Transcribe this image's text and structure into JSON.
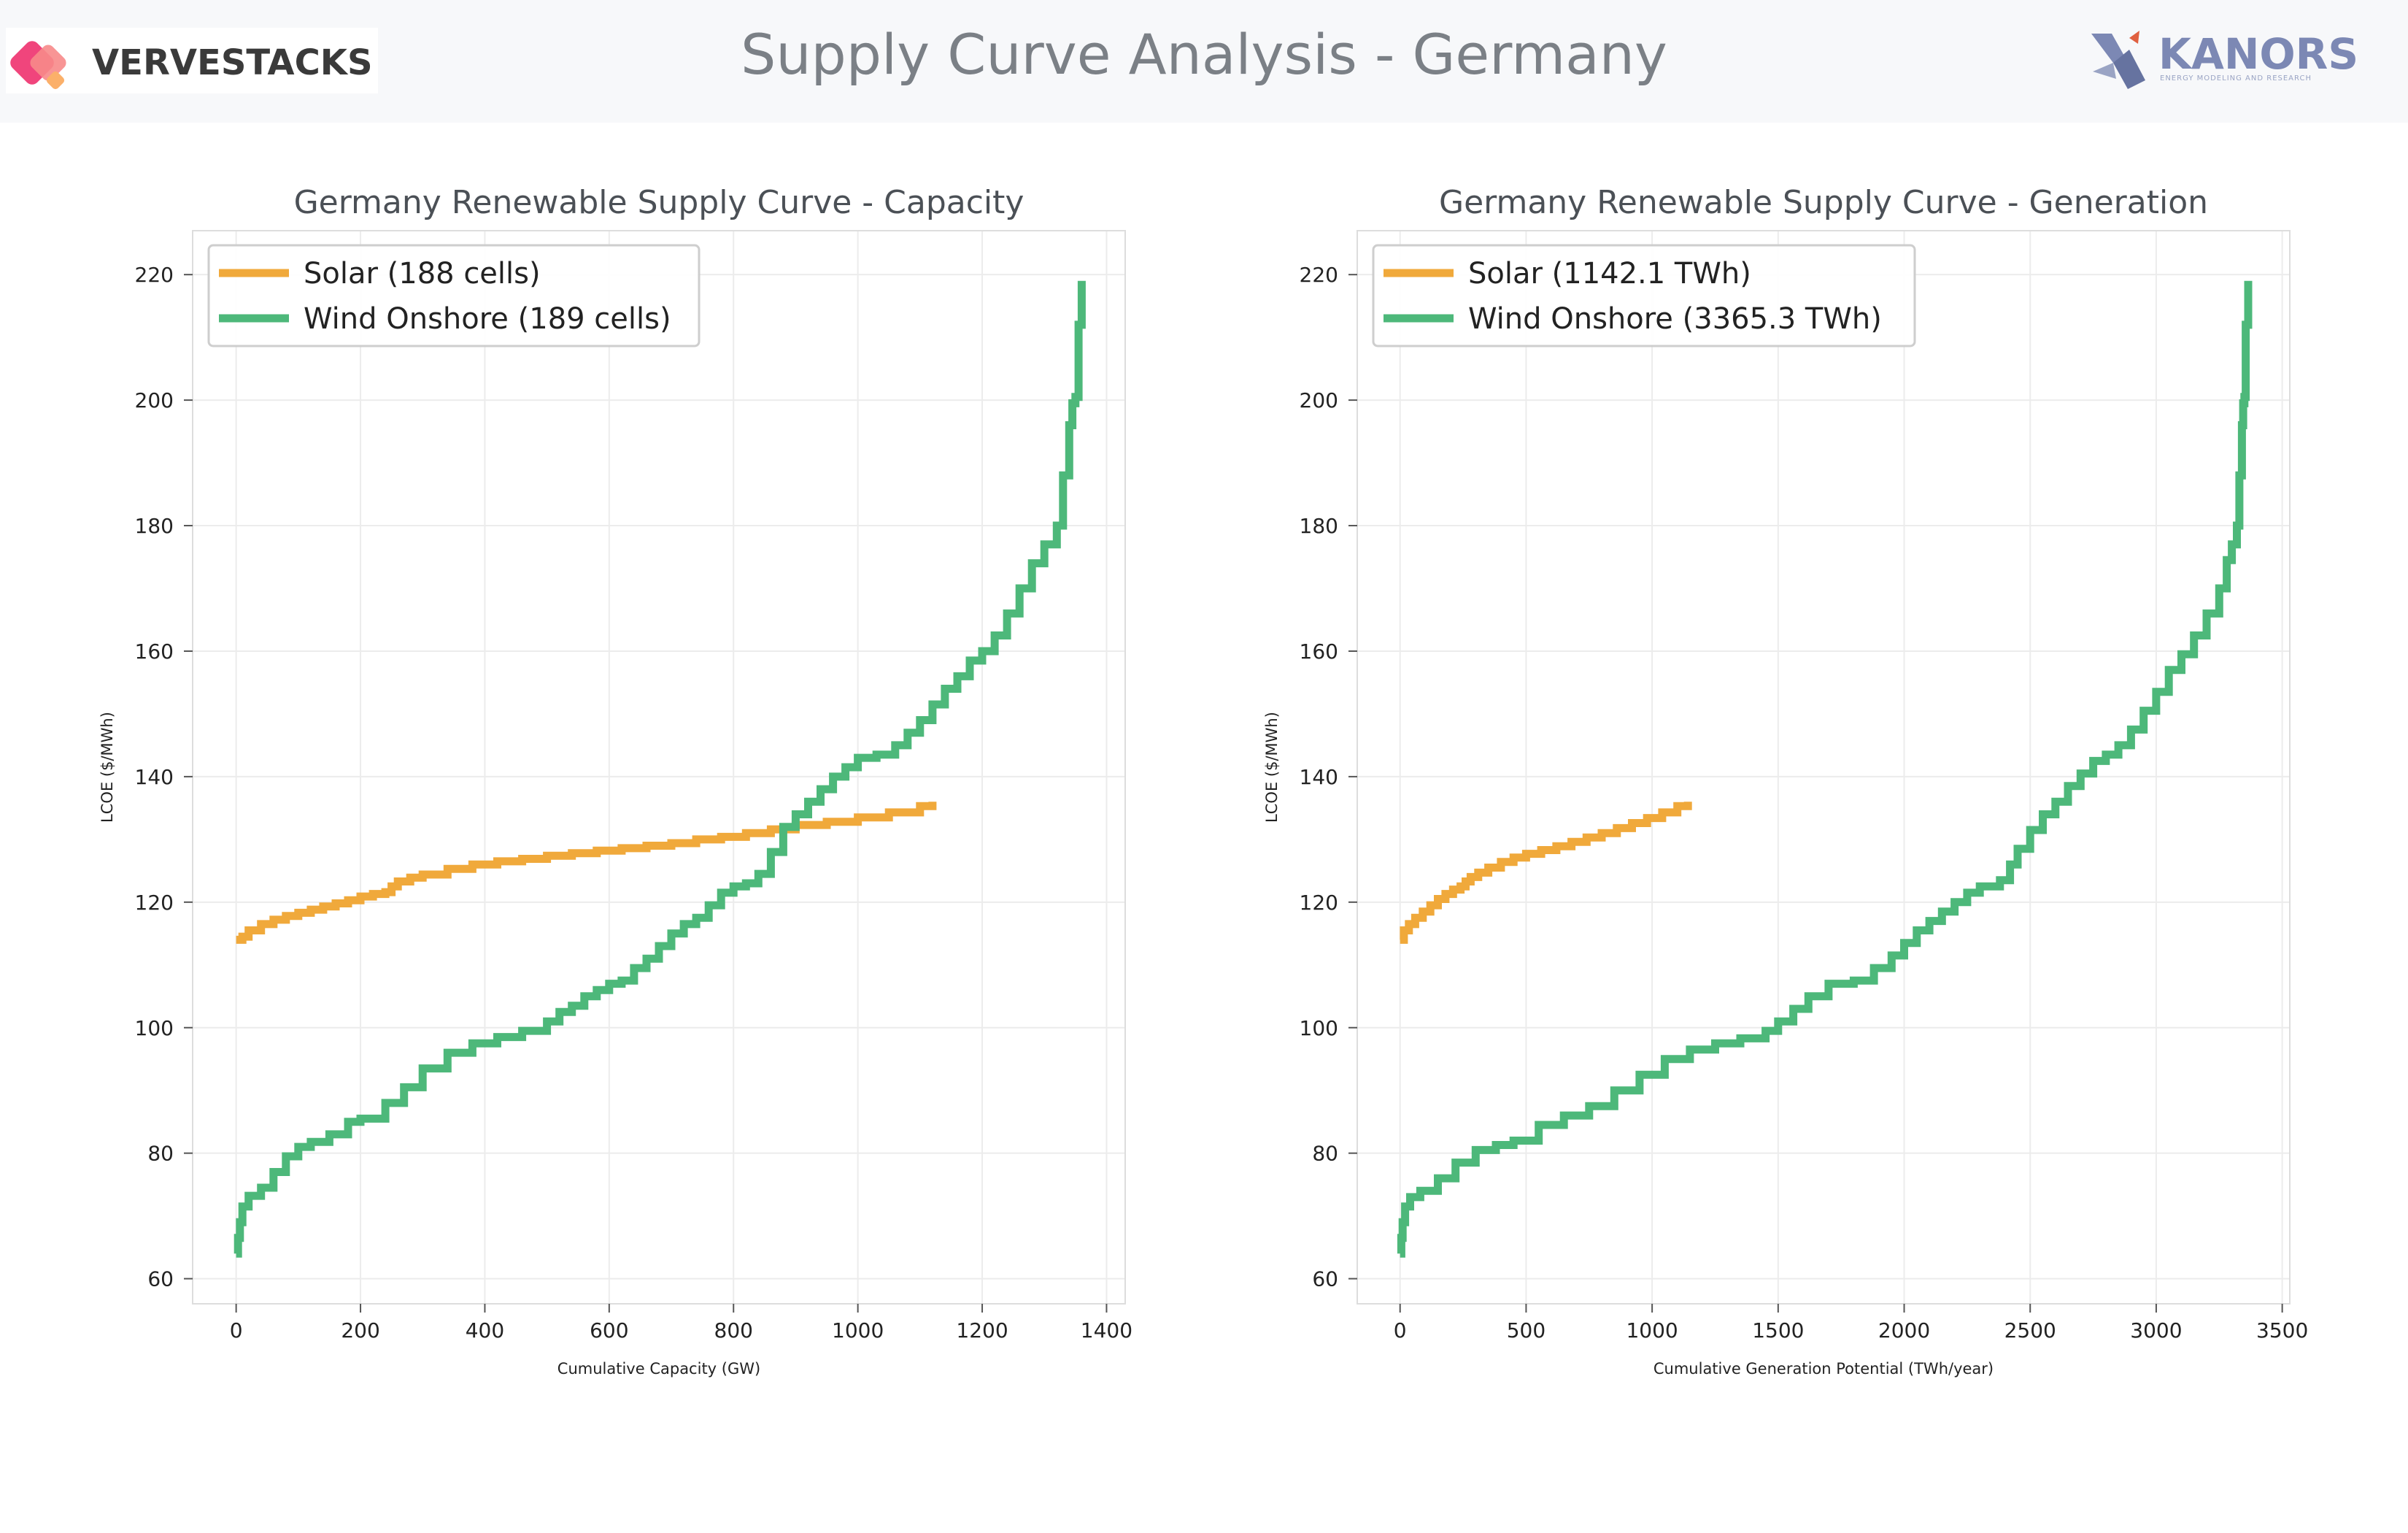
{
  "header": {
    "title": "Supply Curve Analysis - Germany",
    "left_logo": "VERVESTACKS",
    "right_logo": "KANORS",
    "right_logo_tagline": "ENERGY MODELING AND RESEARCH"
  },
  "colors": {
    "solar": "#f0a93b",
    "wind": "#4db87a"
  },
  "chart_data": [
    {
      "type": "line",
      "title": "Germany Renewable Supply Curve - Capacity",
      "xlabel": "Cumulative Capacity (GW)",
      "ylabel": "LCOE ($/MWh)",
      "xlim": [
        -70,
        1430
      ],
      "ylim": [
        56,
        227
      ],
      "xticks": [
        0,
        200,
        400,
        600,
        800,
        1000,
        1200,
        1400
      ],
      "yticks": [
        60,
        80,
        100,
        120,
        140,
        160,
        180,
        200,
        220
      ],
      "grid": true,
      "legend_position": "top-left",
      "series": [
        {
          "name": "Solar (188 cells)",
          "color": "#f0a93b",
          "x": [
            0,
            10,
            20,
            40,
            60,
            80,
            100,
            120,
            140,
            160,
            180,
            200,
            220,
            240,
            250,
            260,
            280,
            300,
            340,
            380,
            420,
            460,
            500,
            540,
            580,
            620,
            660,
            700,
            740,
            780,
            820,
            860,
            900,
            950,
            1000,
            1050,
            1100,
            1120
          ],
          "y": [
            114,
            114.5,
            115.5,
            116.5,
            117.2,
            117.8,
            118.3,
            118.8,
            119.3,
            119.8,
            120.3,
            120.9,
            121.3,
            121.6,
            122.5,
            123.3,
            123.9,
            124.4,
            125.3,
            126.0,
            126.5,
            126.9,
            127.4,
            127.8,
            128.2,
            128.6,
            129.0,
            129.4,
            130.0,
            130.4,
            131.0,
            131.6,
            132.3,
            132.8,
            133.5,
            134.3,
            135.3,
            136.0
          ]
        },
        {
          "name": "Wind Onshore (189 cells)",
          "color": "#4db87a",
          "x": [
            0,
            3,
            6,
            10,
            20,
            40,
            60,
            80,
            100,
            120,
            150,
            180,
            200,
            240,
            270,
            300,
            340,
            380,
            420,
            460,
            500,
            520,
            540,
            560,
            580,
            600,
            620,
            640,
            660,
            680,
            700,
            720,
            740,
            760,
            780,
            800,
            820,
            840,
            860,
            880,
            900,
            920,
            940,
            960,
            980,
            1000,
            1030,
            1060,
            1080,
            1100,
            1120,
            1140,
            1160,
            1180,
            1200,
            1220,
            1240,
            1260,
            1280,
            1300,
            1320,
            1330,
            1340,
            1345,
            1350,
            1355,
            1360
          ],
          "y": [
            64,
            66.5,
            69,
            71.5,
            73.2,
            74.5,
            77,
            79.5,
            81,
            81.8,
            83,
            85,
            85.5,
            88,
            90.5,
            93.5,
            96,
            97.5,
            98.5,
            99.5,
            101,
            102.5,
            103.5,
            105,
            106,
            107,
            107.5,
            109.5,
            111,
            113,
            115,
            116.5,
            117.5,
            119.5,
            121.5,
            122.5,
            123,
            124.5,
            128,
            132,
            134,
            136,
            138,
            140,
            141.5,
            143,
            143.5,
            145,
            147,
            149,
            151.5,
            154,
            156,
            158.5,
            160,
            162.5,
            166,
            170,
            174,
            177,
            180,
            188,
            196,
            199.5,
            200.5,
            212,
            219
          ]
        }
      ]
    },
    {
      "type": "line",
      "title": "Germany Renewable Supply Curve - Generation",
      "xlabel": "Cumulative Generation Potential (TWh/year)",
      "ylabel": "LCOE ($/MWh)",
      "xlim": [
        -170,
        3530
      ],
      "ylim": [
        56,
        227
      ],
      "xticks": [
        0,
        500,
        1000,
        1500,
        2000,
        2500,
        3000,
        3500
      ],
      "yticks": [
        60,
        80,
        100,
        120,
        140,
        160,
        180,
        200,
        220
      ],
      "grid": true,
      "legend_position": "top-left",
      "series": [
        {
          "name": "Solar (1142.1 TWh)",
          "color": "#f0a93b",
          "x": [
            0,
            15,
            35,
            60,
            90,
            120,
            150,
            180,
            210,
            240,
            260,
            280,
            310,
            350,
            400,
            450,
            500,
            560,
            620,
            680,
            740,
            800,
            860,
            920,
            980,
            1040,
            1100,
            1142
          ],
          "y": [
            114,
            115.5,
            116.5,
            117.5,
            118.5,
            119.5,
            120.5,
            121.3,
            122,
            122.5,
            123.3,
            124,
            124.7,
            125.5,
            126.4,
            127.1,
            127.7,
            128.3,
            128.9,
            129.6,
            130.3,
            131,
            131.8,
            132.6,
            133.4,
            134.3,
            135.3,
            136
          ]
        },
        {
          "name": "Wind Onshore (3365.3 TWh)",
          "color": "#4db87a",
          "x": [
            0,
            5,
            10,
            20,
            40,
            80,
            150,
            220,
            300,
            380,
            450,
            550,
            650,
            750,
            850,
            950,
            1050,
            1150,
            1250,
            1350,
            1450,
            1500,
            1560,
            1620,
            1700,
            1800,
            1880,
            1950,
            2000,
            2050,
            2100,
            2150,
            2200,
            2250,
            2300,
            2380,
            2420,
            2450,
            2500,
            2550,
            2600,
            2650,
            2700,
            2750,
            2800,
            2850,
            2900,
            2950,
            3000,
            3050,
            3100,
            3150,
            3200,
            3250,
            3280,
            3300,
            3320,
            3330,
            3340,
            3345,
            3350,
            3355,
            3365
          ],
          "y": [
            64,
            66.5,
            69,
            71.5,
            73,
            74,
            76,
            78.5,
            80.5,
            81.3,
            82,
            84.5,
            86,
            87.5,
            90,
            92.5,
            95,
            96.5,
            97.5,
            98.3,
            99.5,
            101,
            103,
            105,
            107,
            107.5,
            109.5,
            111.5,
            113.5,
            115.5,
            117,
            118.5,
            120,
            121.5,
            122.5,
            123.5,
            126,
            128.5,
            131.5,
            134,
            136,
            138.5,
            140.5,
            142.5,
            143.5,
            145,
            147.5,
            150.5,
            153.5,
            157,
            159.5,
            162.5,
            166,
            170,
            174.5,
            177,
            180,
            188,
            196,
            199.5,
            200.5,
            212,
            219
          ]
        }
      ]
    }
  ]
}
